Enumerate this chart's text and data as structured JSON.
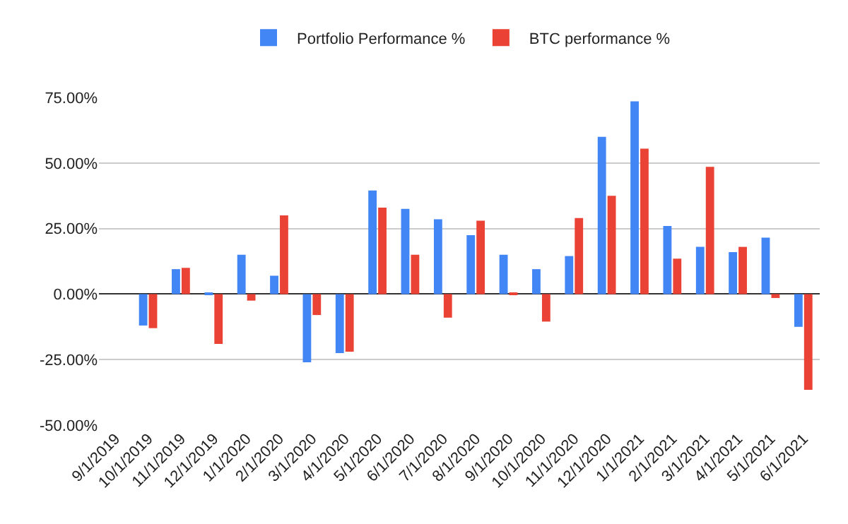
{
  "chart_data": {
    "type": "bar",
    "categories": [
      "9/1/2019",
      "10/1/2019",
      "11/1/2019",
      "12/1/2019",
      "1/1/2020",
      "2/1/2020",
      "3/1/2020",
      "4/1/2020",
      "5/1/2020",
      "6/1/2020",
      "7/1/2020",
      "8/1/2020",
      "9/1/2020",
      "10/1/2020",
      "11/1/2020",
      "12/1/2020",
      "1/1/2021",
      "2/1/2021",
      "3/1/2021",
      "4/1/2021",
      "5/1/2021",
      "6/1/2021"
    ],
    "series": [
      {
        "name": "Portfolio Performance %",
        "color": "#4285f4",
        "values": [
          null,
          -12,
          9.5,
          0.5,
          15,
          7,
          -26,
          -22.5,
          39.5,
          32.5,
          28.5,
          22.5,
          15,
          9.5,
          14.5,
          60,
          73.5,
          26,
          18,
          16,
          21.5,
          -12.5
        ]
      },
      {
        "name": "BTC performance %",
        "color": "#ea4335",
        "values": [
          null,
          -13,
          10,
          -19,
          -2.5,
          30,
          -8,
          -22,
          33,
          15,
          -9,
          28,
          0.5,
          -10.5,
          29,
          37.5,
          55.5,
          13.5,
          48.5,
          18,
          -1.5,
          -36.5
        ]
      }
    ],
    "ylim": [
      -50,
      75
    ],
    "yticks": [
      {
        "value": -50,
        "label": "-50.00%"
      },
      {
        "value": -25,
        "label": "-25.00%"
      },
      {
        "value": 0,
        "label": "0.00%"
      },
      {
        "value": 25,
        "label": "25.00%"
      },
      {
        "value": 50,
        "label": "50.00%"
      },
      {
        "value": 75,
        "label": "75.00%"
      }
    ],
    "grid": "y",
    "legend": "top"
  }
}
